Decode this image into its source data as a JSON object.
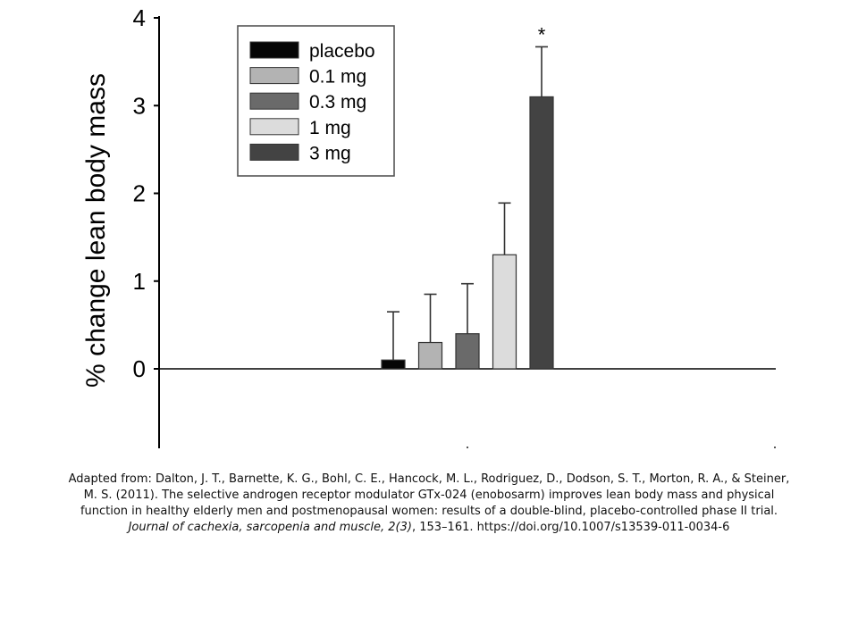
{
  "chart_data": {
    "type": "bar",
    "title": "",
    "xlabel": "",
    "ylabel": "% change lean body mass",
    "ylim": [
      -0.9,
      4
    ],
    "yticks": [
      0,
      1,
      2,
      3,
      4
    ],
    "grid": false,
    "legend_position": "top-left",
    "categories": [
      "placebo",
      "0.1 mg",
      "0.3 mg",
      "1 mg",
      "3 mg"
    ],
    "values": [
      0.1,
      0.3,
      0.4,
      1.3,
      3.1
    ],
    "errors": [
      0.55,
      0.55,
      0.57,
      0.59,
      0.57
    ],
    "significance": [
      "",
      "",
      "",
      "",
      "*"
    ],
    "colors": [
      "#050505",
      "#b3b3b3",
      "#6a6a6a",
      "#dcdcdc",
      "#434343"
    ]
  },
  "caption": {
    "text": "Adapted from: Dalton, J. T., Barnette, K. G., Bohl, C. E., Hancock, M. L., Rodriguez, D., Dodson, S. T., Morton, R. A., & Steiner, M. S. (2011). The selective androgen receptor modulator GTx-024 (enobosarm) improves lean body mass and physical function in healthy elderly men and postmenopausal women: results of a double-blind, placebo-controlled phase II trial. ",
    "journal": "Journal of cachexia, sarcopenia and muscle, 2(3)",
    "tail": ", 153–161. https://doi.org/10.1007/s13539-011-0034-6"
  }
}
